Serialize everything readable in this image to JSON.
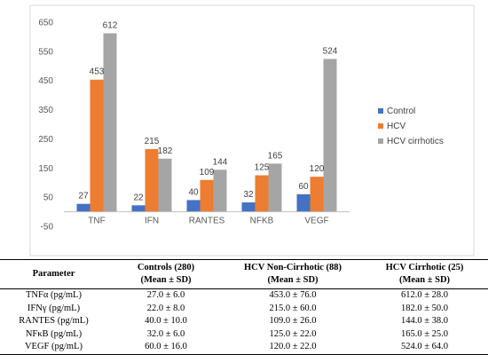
{
  "chart_data": {
    "type": "bar",
    "categories": [
      "TNF",
      "IFN",
      "RANTES",
      "NFKB",
      "VEGF"
    ],
    "series": [
      {
        "name": "Control",
        "values": [
          27,
          22,
          40,
          32,
          60
        ],
        "color": "#4472C4"
      },
      {
        "name": "HCV",
        "values": [
          453,
          215,
          109,
          125,
          120
        ],
        "color": "#ED7D31"
      },
      {
        "name": "HCV cirrhotics",
        "values": [
          612,
          182,
          144,
          165,
          524
        ],
        "color": "#A5A5A5"
      }
    ],
    "yticks": [
      -50,
      50,
      150,
      250,
      350,
      450,
      550,
      650
    ],
    "ylim": [
      -50,
      650
    ],
    "grid": false,
    "legend": "right"
  },
  "table": {
    "headers": [
      [
        "Parameter",
        ""
      ],
      [
        "Controls (280)",
        "(Mean ± SD)"
      ],
      [
        "HCV Non-Cirrhotic (88)",
        "(Mean ± SD)"
      ],
      [
        "HCV Cirrhotic (25)",
        "(Mean ± SD)"
      ]
    ],
    "rows": [
      [
        "TNFα (pg/mL)",
        "27.0 ± 6.0",
        "453.0 ± 76.0",
        "612.0 ± 28.0"
      ],
      [
        "IFNγ (pg/mL)",
        "22.0 ± 8.0",
        "215.0 ± 60.0",
        "182.0 ± 50.0"
      ],
      [
        "RANTES (pg/mL)",
        "40.0 ± 10.0",
        "109.0 ± 26.0",
        "144.0 ± 38.0"
      ],
      [
        "NFκB (pg/mL)",
        "32.0 ± 6.0",
        "125.0 ± 22.0",
        "165.0 ± 25.0"
      ],
      [
        "VEGF (pg/mL)",
        "60.0 ± 16.0",
        "120.0 ± 22.0",
        "524.0 ± 64.0"
      ]
    ]
  }
}
